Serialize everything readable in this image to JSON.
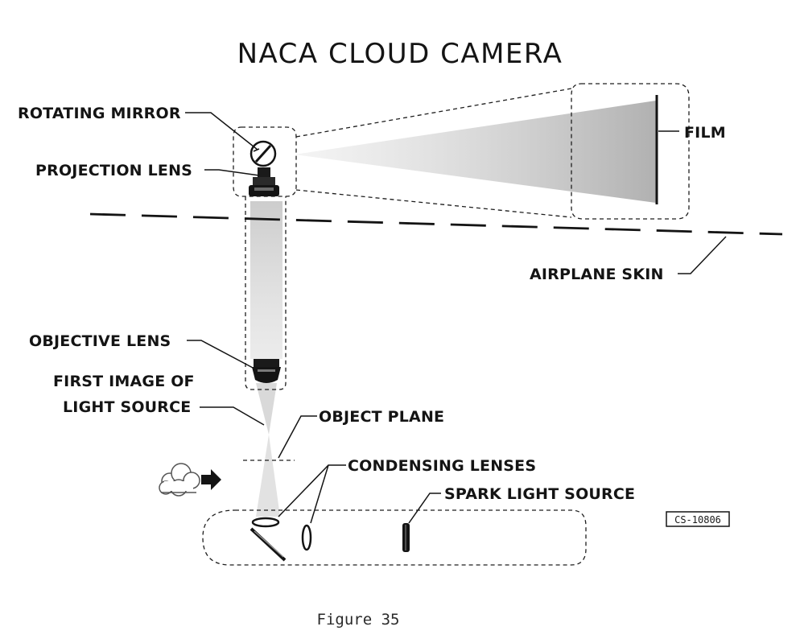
{
  "title": "NACA CLOUD CAMERA",
  "labels": {
    "rotating_mirror": "ROTATING MIRROR",
    "projection_lens": "PROJECTION LENS",
    "film": "FILM",
    "airplane_skin": "AIRPLANE SKIN",
    "objective_lens": "OBJECTIVE LENS",
    "first_image_line1": "FIRST IMAGE OF",
    "first_image_line2": "LIGHT SOURCE",
    "object_plane": "OBJECT PLANE",
    "condensing_lenses": "CONDENSING LENSES",
    "spark_light_source": "SPARK LIGHT SOURCE"
  },
  "code": "CS-10806",
  "caption": "Figure 35",
  "colors": {
    "ink": "#141414",
    "beam": "#c8c8c8"
  }
}
